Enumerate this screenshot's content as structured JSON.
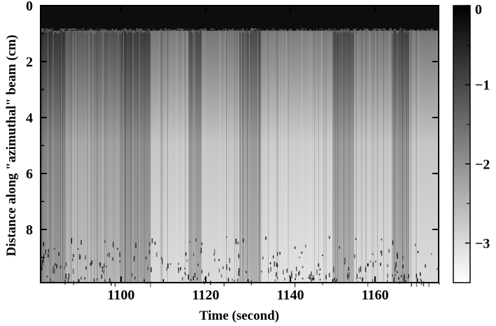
{
  "chart_data": {
    "type": "heatmap",
    "title": "",
    "xlabel": "Time (second)",
    "ylabel": "Distance along  \"azimuthal\" beam (cm)",
    "xlim": [
      1081,
      1175
    ],
    "ylim": [
      0,
      9.9
    ],
    "y_inverted": true,
    "x_ticks": [
      1100,
      1120,
      1140,
      1160
    ],
    "x_tick_labels": [
      "1100",
      "1120",
      "1140",
      "1160"
    ],
    "y_ticks": [
      0,
      2,
      4,
      6,
      8
    ],
    "y_tick_labels": [
      "0",
      "2",
      "4",
      "6",
      "8"
    ],
    "colorbar": {
      "range": [
        -3.5,
        0
      ],
      "ticks": [
        0,
        -1,
        -2,
        -3
      ],
      "tick_labels": [
        "0",
        "−1",
        "−2",
        "−3"
      ],
      "colormap": "grayscale",
      "high_color": "#000000",
      "low_color": "#ffffff"
    },
    "dark_band_depth_cm": 0.9,
    "bright_periods": [
      {
        "start": 1081,
        "end": 1087,
        "level": -2.1
      },
      {
        "start": 1087,
        "end": 1093,
        "level": -2.6
      },
      {
        "start": 1093,
        "end": 1100,
        "level": -2.5
      },
      {
        "start": 1100,
        "end": 1107,
        "level": -2.2
      },
      {
        "start": 1107,
        "end": 1116,
        "level": -3.0
      },
      {
        "start": 1116,
        "end": 1119,
        "level": -2.3
      },
      {
        "start": 1119,
        "end": 1128,
        "level": -3.0
      },
      {
        "start": 1128,
        "end": 1133,
        "level": -2.4
      },
      {
        "start": 1133,
        "end": 1150,
        "level": -3.1
      },
      {
        "start": 1150,
        "end": 1155,
        "level": -2.4
      },
      {
        "start": 1155,
        "end": 1164,
        "level": -3.0
      },
      {
        "start": 1164,
        "end": 1168,
        "level": -2.3
      },
      {
        "start": 1168,
        "end": 1175,
        "level": -3.0
      }
    ],
    "grid": false,
    "legend": "none"
  }
}
